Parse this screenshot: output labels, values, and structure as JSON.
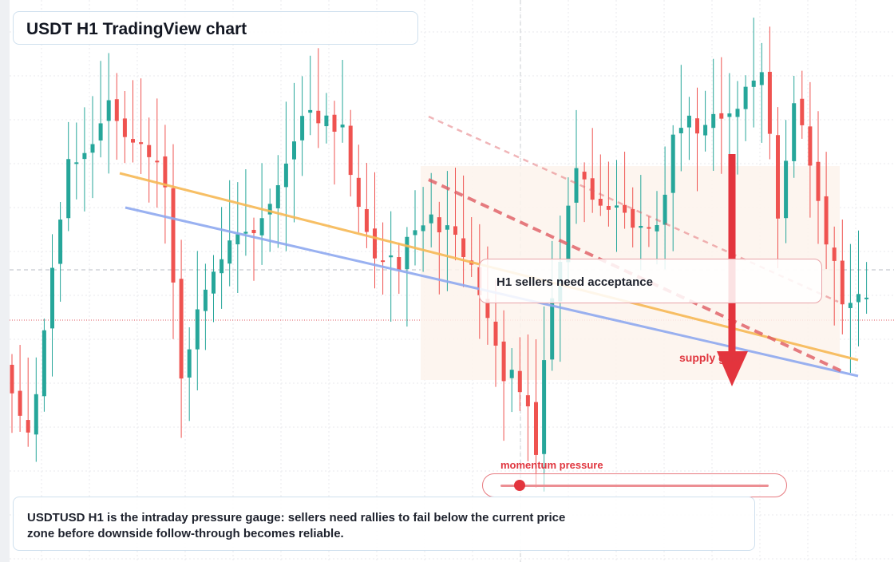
{
  "title": "USDT H1 TradingView chart",
  "callout": "H1 sellers need acceptance",
  "zone_label": "supply gate",
  "gauge": {
    "label": "momentum pressure",
    "value_fraction": 0.07
  },
  "description": "USDTUSD H1 is the intraday pressure gauge: sellers need rallies to fail below the current price zone before downside follow-through becomes reliable.",
  "colors": {
    "bull": "#26a69a",
    "bear": "#ef5350",
    "resistance_line": "#f7b955",
    "support_line": "#8fa9f0",
    "trend_dashed": "#e05c63",
    "arrow": "#e3343d",
    "accent_text": "#e0363f"
  },
  "chart_data": {
    "type": "candlestick",
    "timeframe": "H1",
    "symbol": "USDT",
    "seed": 27,
    "candle_count": 107,
    "price_path": [
      [
        0,
        0.32
      ],
      [
        3,
        0.16
      ],
      [
        8,
        0.73
      ],
      [
        10,
        0.76
      ],
      [
        13,
        0.87
      ],
      [
        16,
        0.79
      ],
      [
        20,
        0.72
      ],
      [
        22,
        0.31
      ],
      [
        25,
        0.5
      ],
      [
        28,
        0.58
      ],
      [
        32,
        0.64
      ],
      [
        38,
        0.86
      ],
      [
        42,
        0.82
      ],
      [
        45,
        0.59
      ],
      [
        48,
        0.53
      ],
      [
        53,
        0.62
      ],
      [
        58,
        0.56
      ],
      [
        61,
        0.33
      ],
      [
        64,
        0.27
      ],
      [
        66,
        0.15
      ],
      [
        68,
        0.48
      ],
      [
        71,
        0.72
      ],
      [
        74,
        0.66
      ],
      [
        76,
        0.63
      ],
      [
        81,
        0.62
      ],
      [
        83,
        0.79
      ],
      [
        87,
        0.86
      ],
      [
        90,
        0.84
      ],
      [
        92,
        0.89
      ],
      [
        94,
        0.94
      ],
      [
        96,
        0.63
      ],
      [
        98,
        0.89
      ],
      [
        101,
        0.66
      ],
      [
        104,
        0.44
      ],
      [
        107,
        0.44
      ]
    ],
    "overlays": {
      "upper_trendline": "orange, descending",
      "lower_trendline": "blue, descending",
      "dashed_trendlines": 2,
      "arrow": "down"
    }
  }
}
